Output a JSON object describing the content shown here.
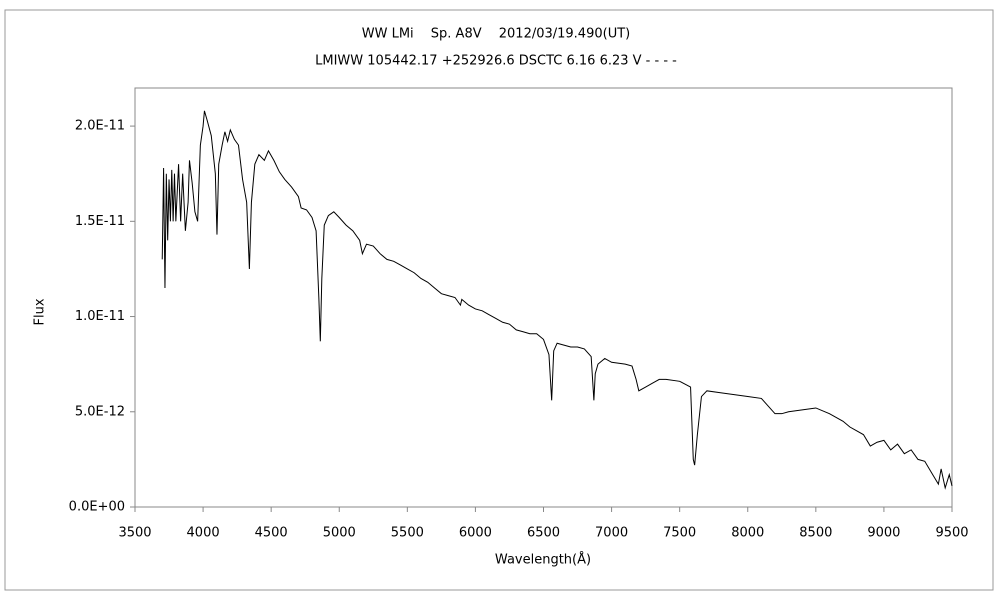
{
  "chart_data": {
    "type": "line",
    "title": "WW LMi　 Sp. A8V　 2012/03/19.490(UT)",
    "subtitle": "LMIWW 105442.17 +252926.6 DSCTC 6.16 6.23 V - - - -",
    "x_label": "Wavelength(Å)",
    "y_label": "Flux",
    "color": "#000000",
    "xlim": [
      3500,
      9500
    ],
    "xticks": [
      3500,
      4000,
      4500,
      5000,
      5500,
      6000,
      6500,
      7000,
      7500,
      8000,
      8500,
      9000,
      9500
    ],
    "ylim": [
      0,
      2.2e-11
    ],
    "yticks": [
      {
        "value": 0,
        "label": "0.0E+00"
      },
      {
        "value": 5e-12,
        "label": "5.0E-12"
      },
      {
        "value": 1e-11,
        "label": "1.0E-11"
      },
      {
        "value": 1.5e-11,
        "label": "1.5E-11"
      },
      {
        "value": 2e-11,
        "label": "2.0E-11"
      }
    ],
    "x": [
      3700,
      3710,
      3720,
      3730,
      3740,
      3750,
      3760,
      3770,
      3780,
      3790,
      3800,
      3820,
      3835,
      3850,
      3870,
      3890,
      3900,
      3920,
      3940,
      3960,
      3970,
      3980,
      4000,
      4010,
      4030,
      4060,
      4090,
      4102,
      4115,
      4140,
      4160,
      4180,
      4200,
      4230,
      4260,
      4290,
      4320,
      4340,
      4355,
      4380,
      4410,
      4450,
      4480,
      4520,
      4560,
      4600,
      4650,
      4700,
      4720,
      4760,
      4800,
      4830,
      4850,
      4861,
      4872,
      4890,
      4920,
      4960,
      5000,
      5050,
      5100,
      5150,
      5170,
      5200,
      5250,
      5300,
      5350,
      5400,
      5450,
      5500,
      5550,
      5600,
      5650,
      5700,
      5750,
      5800,
      5850,
      5890,
      5900,
      5950,
      6000,
      6050,
      6100,
      6150,
      6200,
      6250,
      6300,
      6350,
      6400,
      6450,
      6500,
      6540,
      6560,
      6575,
      6600,
      6650,
      6700,
      6750,
      6800,
      6850,
      6870,
      6880,
      6900,
      6950,
      7000,
      7100,
      7150,
      7180,
      7200,
      7250,
      7300,
      7350,
      7400,
      7500,
      7580,
      7600,
      7610,
      7630,
      7660,
      7700,
      7800,
      7900,
      8000,
      8100,
      8150,
      8200,
      8250,
      8300,
      8400,
      8500,
      8600,
      8700,
      8750,
      8800,
      8850,
      8900,
      8950,
      9000,
      9050,
      9100,
      9150,
      9200,
      9250,
      9300,
      9350,
      9400,
      9420,
      9450,
      9480,
      9500
    ],
    "values": [
      1.3e-11,
      1.78e-11,
      1.15e-11,
      1.75e-11,
      1.4e-11,
      1.72e-11,
      1.5e-11,
      1.77e-11,
      1.5e-11,
      1.75e-11,
      1.5e-11,
      1.8e-11,
      1.5e-11,
      1.75e-11,
      1.45e-11,
      1.6e-11,
      1.82e-11,
      1.7e-11,
      1.55e-11,
      1.5e-11,
      1.7e-11,
      1.9e-11,
      2e-11,
      2.08e-11,
      2.03e-11,
      1.95e-11,
      1.75e-11,
      1.43e-11,
      1.8e-11,
      1.9e-11,
      1.97e-11,
      1.92e-11,
      1.98e-11,
      1.93e-11,
      1.9e-11,
      1.72e-11,
      1.6e-11,
      1.25e-11,
      1.6e-11,
      1.8e-11,
      1.85e-11,
      1.82e-11,
      1.87e-11,
      1.82e-11,
      1.76e-11,
      1.72e-11,
      1.68e-11,
      1.63e-11,
      1.57e-11,
      1.56e-11,
      1.52e-11,
      1.45e-11,
      1.1e-11,
      8.7e-12,
      1.2e-11,
      1.48e-11,
      1.53e-11,
      1.55e-11,
      1.52e-11,
      1.48e-11,
      1.45e-11,
      1.4e-11,
      1.33e-11,
      1.38e-11,
      1.37e-11,
      1.33e-11,
      1.3e-11,
      1.29e-11,
      1.27e-11,
      1.25e-11,
      1.23e-11,
      1.2e-11,
      1.18e-11,
      1.15e-11,
      1.12e-11,
      1.11e-11,
      1.1e-11,
      1.06e-11,
      1.09e-11,
      1.06e-11,
      1.04e-11,
      1.03e-11,
      1.01e-11,
      9.9e-12,
      9.7e-12,
      9.6e-12,
      9.3e-12,
      9.2e-12,
      9.1e-12,
      9.1e-12,
      8.8e-12,
      8e-12,
      5.6e-12,
      8.2e-12,
      8.6e-12,
      8.5e-12,
      8.4e-12,
      8.4e-12,
      8.3e-12,
      7.9e-12,
      5.6e-12,
      7e-12,
      7.5e-12,
      7.8e-12,
      7.6e-12,
      7.5e-12,
      7.4e-12,
      6.7e-12,
      6.1e-12,
      6.3e-12,
      6.5e-12,
      6.7e-12,
      6.7e-12,
      6.6e-12,
      6.3e-12,
      2.5e-12,
      2.2e-12,
      3.8e-12,
      5.8e-12,
      6.1e-12,
      6e-12,
      5.9e-12,
      5.8e-12,
      5.7e-12,
      5.3e-12,
      4.9e-12,
      4.9e-12,
      5e-12,
      5.1e-12,
      5.2e-12,
      4.9e-12,
      4.5e-12,
      4.2e-12,
      4e-12,
      3.8e-12,
      3.2e-12,
      3.4e-12,
      3.5e-12,
      3e-12,
      3.3e-12,
      2.8e-12,
      3e-12,
      2.5e-12,
      2.4e-12,
      1.8e-12,
      1.2e-12,
      2e-12,
      1e-12,
      1.7e-12,
      1.1e-12
    ]
  }
}
